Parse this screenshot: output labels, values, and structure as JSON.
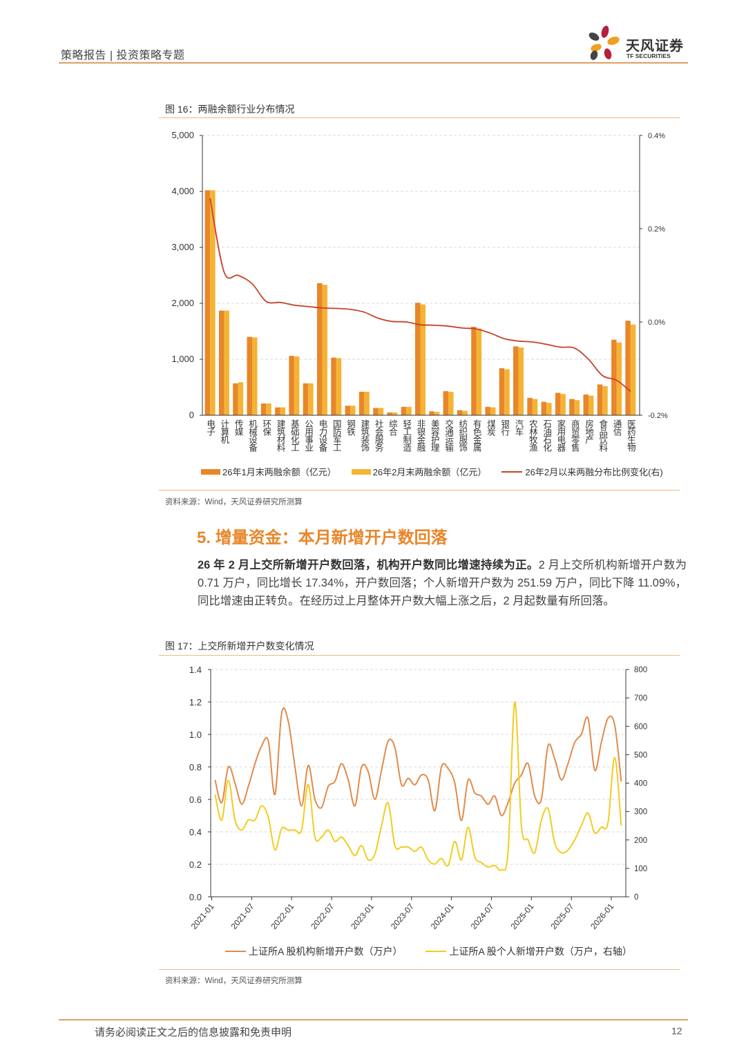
{
  "header": {
    "title": "策略报告 | 投资策略专题",
    "logo_cn": "天风证券",
    "logo_en": "TF SECURITIES",
    "accent": "#E8862A"
  },
  "figure16": {
    "title": "图 16：两融余额行业分布情况",
    "source": "资料来源：Wind，天风证券研究所测算"
  },
  "section": {
    "heading": "5. 增量资金：本月新增开户数回落",
    "lead": "26 年 2 月上交所新增开户数回落，机构开户数同比增速持续为正。",
    "body": "2 月上交所机构新增开户数为 0.71 万户，同比增长 17.34%，开户数回落；个人新增开户数为 251.59 万户，同比下降 11.09%，同比增速由正转负。在经历过上月整体开户数大幅上涨之后，2 月起数量有所回落。"
  },
  "figure17": {
    "title": "图 17：上交所新增开户数变化情况",
    "source": "资料来源：Wind，天风证券研究所测算"
  },
  "footer": {
    "disclaimer": "请务必阅读正文之后的信息披露和免责申明",
    "page": "12"
  },
  "chart_data": [
    {
      "type": "bar",
      "categories": [
        "电子",
        "计算机",
        "传媒",
        "机械设备",
        "环保",
        "建筑材料",
        "基础化工",
        "公用事业",
        "电力设备",
        "国防军工",
        "钢铁",
        "建筑装饰",
        "社会服务",
        "综合",
        "轻工制造",
        "非银金融",
        "美容护理",
        "交通运输",
        "纺织服饰",
        "有色金属",
        "煤炭",
        "银行",
        "汽车",
        "农林牧渔",
        "石油石化",
        "家用电器",
        "商贸零售",
        "房地产",
        "食品饮料",
        "通信",
        "医药生物"
      ],
      "series": [
        {
          "name": "26年1月末两融余额（亿元）",
          "type": "bar",
          "axis": "left",
          "color": "#E8862A",
          "values": [
            4020,
            1870,
            570,
            1400,
            210,
            140,
            1060,
            570,
            2360,
            1030,
            170,
            420,
            130,
            50,
            150,
            2010,
            70,
            430,
            90,
            1580,
            150,
            840,
            1230,
            310,
            240,
            400,
            290,
            370,
            550,
            1350,
            1690
          ]
        },
        {
          "name": "26年2月末两融余额（亿元）",
          "type": "bar",
          "axis": "left",
          "color": "#F5B335",
          "values": [
            4020,
            1870,
            590,
            1390,
            210,
            140,
            1050,
            570,
            2330,
            1020,
            170,
            420,
            130,
            50,
            150,
            1980,
            60,
            420,
            80,
            1550,
            140,
            820,
            1210,
            290,
            220,
            380,
            270,
            350,
            520,
            1300,
            1620
          ]
        },
        {
          "name": "26年2月以来两融分布比例变化(右)",
          "type": "line",
          "axis": "right",
          "color": "#C8402A",
          "values": [
            0.265,
            0.107,
            0.1,
            0.082,
            0.044,
            0.042,
            0.036,
            0.033,
            0.03,
            0.029,
            0.027,
            0.021,
            0.008,
            0.001,
            0.0,
            -0.006,
            -0.007,
            -0.009,
            -0.013,
            -0.015,
            -0.024,
            -0.036,
            -0.041,
            -0.043,
            -0.048,
            -0.054,
            -0.056,
            -0.08,
            -0.115,
            -0.125,
            -0.149
          ]
        }
      ],
      "y_left": {
        "range": [
          0,
          5000
        ],
        "ticks": [
          0,
          1000,
          2000,
          3000,
          4000,
          5000
        ],
        "tick_labels": [
          "0",
          "1,000",
          "2,000",
          "3,000",
          "4,000",
          "5,000"
        ]
      },
      "y_right": {
        "range": [
          -0.2,
          0.4
        ],
        "unit": "%",
        "ticks": [
          -0.2,
          0.0,
          0.2,
          0.4
        ],
        "tick_labels": [
          "-0.2%",
          "0.0%",
          "0.2%",
          "0.4%"
        ]
      },
      "grid": true,
      "legend": "bottom"
    },
    {
      "type": "line",
      "x_start": "2021-01",
      "x_end": "2026-02",
      "x_tick_labels": [
        "2021-01",
        "2021-07",
        "2022-01",
        "2022-07",
        "2023-01",
        "2023-07",
        "2024-01",
        "2024-07",
        "2025-01",
        "2025-07",
        "2026-01"
      ],
      "series": [
        {
          "name": "上证所A 股机构新增开户数（万户）",
          "axis": "left",
          "color": "#E08A4A",
          "values": [
            0.72,
            0.58,
            0.8,
            0.7,
            0.57,
            0.68,
            0.82,
            0.93,
            0.96,
            0.63,
            1.13,
            1.08,
            0.8,
            0.56,
            0.81,
            0.6,
            0.55,
            0.68,
            0.71,
            0.82,
            0.72,
            0.56,
            0.8,
            0.77,
            0.6,
            0.78,
            0.96,
            0.92,
            0.69,
            0.73,
            0.69,
            0.75,
            0.72,
            0.53,
            0.8,
            0.79,
            0.7,
            0.47,
            0.72,
            0.64,
            0.62,
            0.57,
            0.62,
            0.5,
            0.58,
            0.7,
            0.75,
            0.82,
            0.62,
            0.6,
            0.93,
            0.85,
            0.72,
            0.82,
            0.95,
            1.0,
            1.1,
            0.78,
            0.95,
            1.1,
            1.06,
            0.71
          ]
        },
        {
          "name": "上证所A 股个人新增开户数（万户，右轴）",
          "axis": "right",
          "color": "#F2CC1E",
          "values": [
            360,
            270,
            410,
            270,
            235,
            270,
            270,
            320,
            280,
            165,
            240,
            235,
            235,
            235,
            395,
            210,
            210,
            235,
            195,
            210,
            180,
            145,
            180,
            130,
            150,
            250,
            330,
            180,
            175,
            175,
            160,
            175,
            130,
            115,
            135,
            110,
            195,
            130,
            245,
            140,
            120,
            105,
            110,
            95,
            160,
            685,
            250,
            200,
            155,
            270,
            310,
            190,
            155,
            165,
            200,
            250,
            295,
            225,
            245,
            260,
            490,
            250
          ]
        }
      ],
      "y_left": {
        "range": [
          0,
          1.4
        ],
        "ticks": [
          0,
          0.2,
          0.4,
          0.6,
          0.8,
          1.0,
          1.2,
          1.4
        ],
        "tick_labels": [
          "0.0",
          "0.2",
          "0.4",
          "0.6",
          "0.8",
          "1.0",
          "1.2",
          "1.4"
        ]
      },
      "y_right": {
        "range": [
          0,
          800
        ],
        "ticks": [
          0,
          100,
          200,
          300,
          400,
          500,
          600,
          700,
          800
        ],
        "tick_labels": [
          "0",
          "100",
          "200",
          "300",
          "400",
          "500",
          "600",
          "700",
          "800"
        ]
      },
      "grid": true,
      "legend": "bottom"
    }
  ]
}
